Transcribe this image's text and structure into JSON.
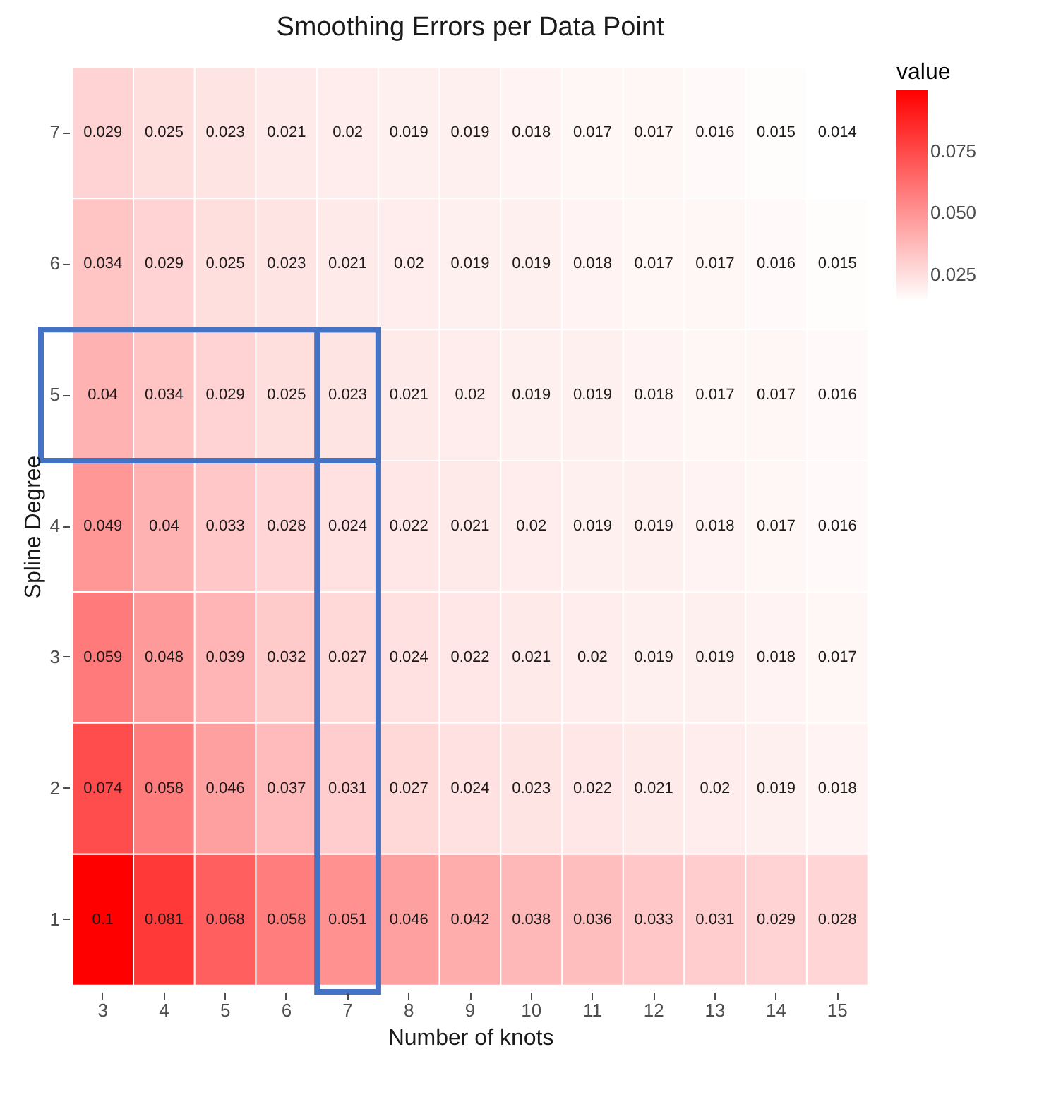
{
  "chart_data": {
    "type": "heatmap",
    "title": "Smoothing Errors per Data Point",
    "xlabel": "Number of knots",
    "ylabel": "Spline Degree",
    "legend_title": "value",
    "categories": [
      "3",
      "4",
      "5",
      "6",
      "7",
      "8",
      "9",
      "10",
      "11",
      "12",
      "13",
      "14",
      "15"
    ],
    "y_categories": [
      "7",
      "6",
      "5",
      "4",
      "3",
      "2",
      "1"
    ],
    "cells": [
      [
        0.029,
        0.025,
        0.023,
        0.021,
        0.02,
        0.019,
        0.019,
        0.018,
        0.017,
        0.017,
        0.016,
        0.015,
        0.014
      ],
      [
        0.034,
        0.029,
        0.025,
        0.023,
        0.021,
        0.02,
        0.019,
        0.019,
        0.018,
        0.017,
        0.017,
        0.016,
        0.015
      ],
      [
        0.04,
        0.034,
        0.029,
        0.025,
        0.023,
        0.021,
        0.02,
        0.019,
        0.019,
        0.018,
        0.017,
        0.017,
        0.016
      ],
      [
        0.049,
        0.04,
        0.033,
        0.028,
        0.024,
        0.022,
        0.021,
        0.02,
        0.019,
        0.019,
        0.018,
        0.017,
        0.016
      ],
      [
        0.059,
        0.048,
        0.039,
        0.032,
        0.027,
        0.024,
        0.022,
        0.021,
        0.02,
        0.019,
        0.019,
        0.018,
        0.017
      ],
      [
        0.074,
        0.058,
        0.046,
        0.037,
        0.031,
        0.027,
        0.024,
        0.023,
        0.022,
        0.021,
        0.02,
        0.019,
        0.018
      ],
      [
        0.1,
        0.081,
        0.068,
        0.058,
        0.051,
        0.046,
        0.042,
        0.038,
        0.036,
        0.033,
        0.031,
        0.029,
        0.028
      ]
    ],
    "clim": [
      0.014,
      0.1
    ],
    "cticks": [
      0.025,
      {
        "value": 0.05,
        "label": "0.050"
      },
      0.075
    ],
    "data_labels": true
  }
}
